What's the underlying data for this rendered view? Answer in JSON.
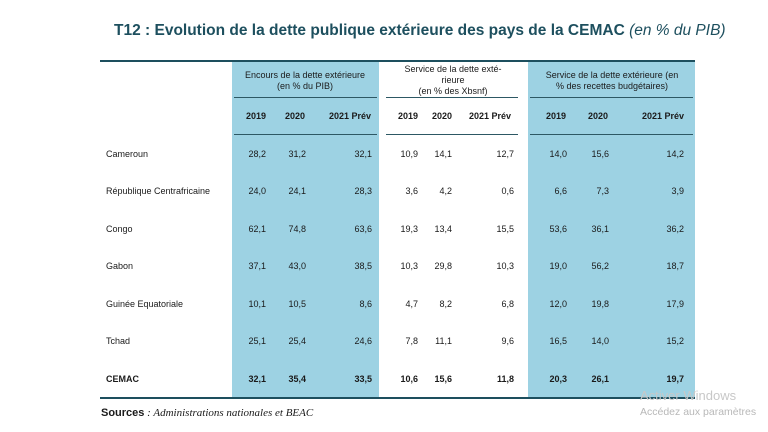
{
  "title": {
    "main": "T12 : Evolution de la dette publique extérieure des pays de la CEMAC",
    "sub": "(en % du PIB)"
  },
  "table": {
    "groups": [
      {
        "line1": "Encours de la dette extérieure",
        "line2": "(en % du PIB)",
        "line3": ""
      },
      {
        "line1": "Service de la dette exté-",
        "line2": "rieure",
        "line3": "(en % des Xbsnf)"
      },
      {
        "line1": "Service de la dette extérieure (en",
        "line2": "% des recettes budgétaires)",
        "line3": ""
      }
    ],
    "years": [
      "2019",
      "2020",
      "2021 Prév"
    ],
    "rows": [
      {
        "name": "Cameroun",
        "values": [
          "28,2",
          "31,2",
          "32,1",
          "10,9",
          "14,1",
          "12,7",
          "14,0",
          "15,6",
          "14,2"
        ]
      },
      {
        "name": "République Centrafricaine",
        "values": [
          "24,0",
          "24,1",
          "28,3",
          "3,6",
          "4,2",
          "0,6",
          "6,6",
          "7,3",
          "3,9"
        ]
      },
      {
        "name": "Congo",
        "values": [
          "62,1",
          "74,8",
          "63,6",
          "19,3",
          "13,4",
          "15,5",
          "53,6",
          "36,1",
          "36,2"
        ]
      },
      {
        "name": "Gabon",
        "values": [
          "37,1",
          "43,0",
          "38,5",
          "10,3",
          "29,8",
          "10,3",
          "19,0",
          "56,2",
          "18,7"
        ]
      },
      {
        "name": "Guinée Equatoriale",
        "values": [
          "10,1",
          "10,5",
          "8,6",
          "4,7",
          "8,2",
          "6,8",
          "12,0",
          "19,8",
          "17,9"
        ]
      },
      {
        "name": "Tchad",
        "values": [
          "25,1",
          "25,4",
          "24,6",
          "7,8",
          "11,1",
          "9,6",
          "16,5",
          "14,0",
          "15,2"
        ]
      },
      {
        "name": "CEMAC",
        "values": [
          "32,1",
          "35,4",
          "33,5",
          "10,6",
          "15,6",
          "11,8",
          "20,3",
          "26,1",
          "19,7"
        ]
      }
    ]
  },
  "sources": {
    "label": "Sources",
    "text": " : Administrations nationales et BEAC"
  },
  "watermark": {
    "line1": "Activer Windows",
    "line2": "Accédez aux paramètres"
  },
  "colors": {
    "band": "#9dd2e3",
    "title": "#1d4f5e",
    "rule": "#1d4f5e"
  }
}
